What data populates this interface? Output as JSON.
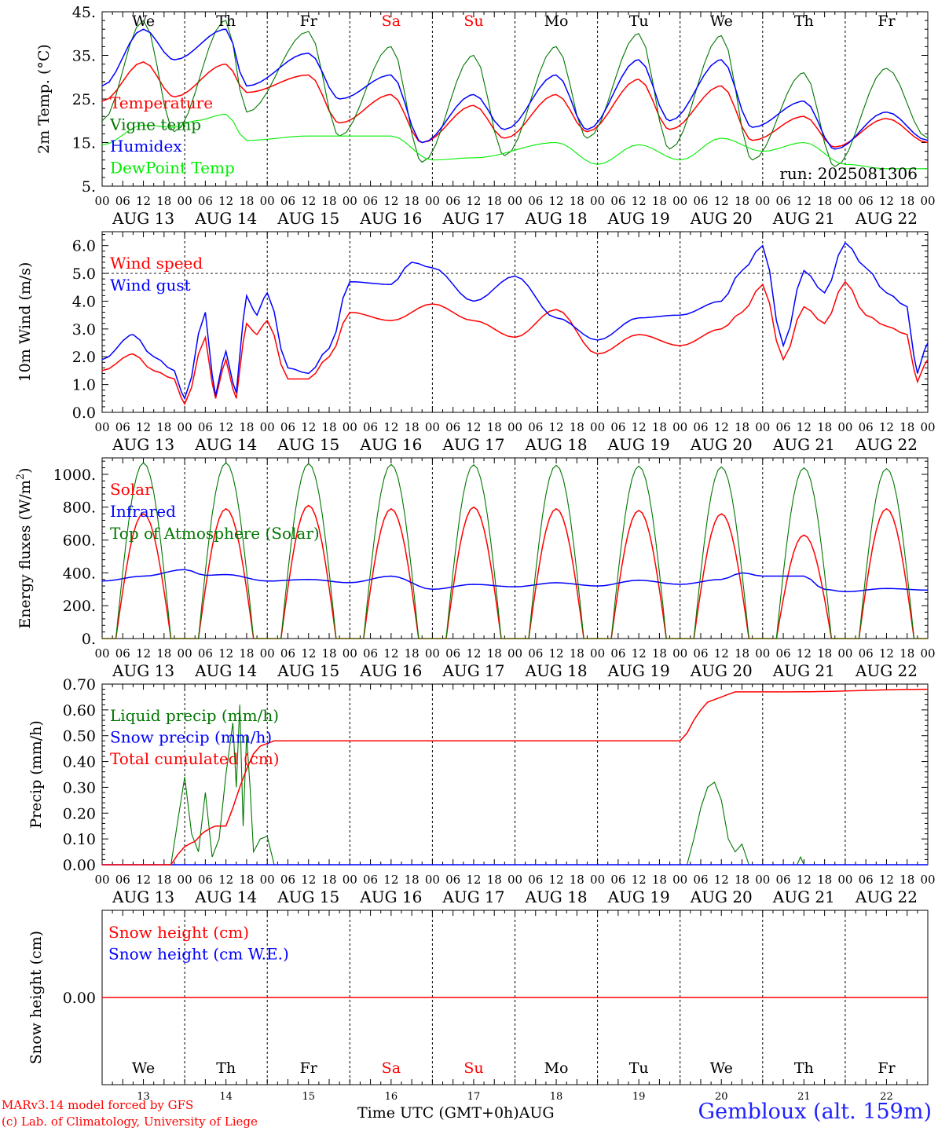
{
  "colors": {
    "red": "#ff0000",
    "green": "#007700",
    "blue": "#0000ff",
    "lime": "#00ee00",
    "weekday": "#000000",
    "weekend": "#ff0000"
  },
  "days": [
    {
      "dow": "We",
      "num": "13",
      "date": "AUG 13",
      "weekend": false
    },
    {
      "dow": "Th",
      "num": "14",
      "date": "AUG 14",
      "weekend": false
    },
    {
      "dow": "Fr",
      "num": "15",
      "date": "AUG 15",
      "weekend": false
    },
    {
      "dow": "Sa",
      "num": "16",
      "date": "AUG 16",
      "weekend": true
    },
    {
      "dow": "Su",
      "num": "17",
      "date": "AUG 17",
      "weekend": true
    },
    {
      "dow": "Mo",
      "num": "18",
      "date": "AUG 18",
      "weekend": false
    },
    {
      "dow": "Tu",
      "num": "19",
      "date": "AUG 19",
      "weekend": false
    },
    {
      "dow": "We",
      "num": "20",
      "date": "AUG 20",
      "weekend": false
    },
    {
      "dow": "Th",
      "num": "21",
      "date": "AUG 21",
      "weekend": false
    },
    {
      "dow": "Fr",
      "num": "22",
      "date": "AUG 22",
      "weekend": false
    }
  ],
  "hour_ticks": [
    "00",
    "06",
    "12",
    "18"
  ],
  "final_hour_tick": "00",
  "footer": {
    "credit_line1": "MARv3.14 model forced by GFS",
    "credit_line2": "(c) Lab. of Climatology, University of Liege",
    "xlabel": "Time UTC (GMT+0h)",
    "month": "AUG",
    "location": "Gembloux (alt. 159m)"
  },
  "chart_data": [
    {
      "type": "line",
      "ylabel": "2m Temp. (°C)",
      "ylim": [
        5,
        45
      ],
      "y_ticks": [
        {
          "v": 5,
          "label": "5."
        },
        {
          "v": 15,
          "label": "15."
        },
        {
          "v": 25,
          "label": "25."
        },
        {
          "v": 35,
          "label": "35."
        },
        {
          "v": 45,
          "label": "45."
        }
      ],
      "annotation": "run: 2025081306",
      "series": [
        {
          "name": "Temperature",
          "color": "#ff0000",
          "hours": [
            0,
            12,
            21,
            36,
            42,
            60,
            69,
            84,
            93,
            108,
            117,
            132,
            141,
            156,
            165,
            180,
            189,
            204,
            213,
            228,
            240
          ],
          "values": [
            24.5,
            33.5,
            25.5,
            33,
            26.5,
            30.5,
            19.5,
            26,
            15,
            23.5,
            16,
            26,
            17.5,
            29.5,
            18,
            28,
            15.5,
            21,
            14,
            20.5,
            15
          ]
        },
        {
          "name": "Vigne temp",
          "color": "#007700",
          "hours": [
            0,
            12,
            21,
            36,
            42,
            60,
            69,
            84,
            93,
            108,
            117,
            132,
            141,
            156,
            165,
            180,
            189,
            204,
            213,
            228,
            240
          ],
          "values": [
            20,
            43,
            17.5,
            43,
            22,
            40.5,
            16.5,
            37,
            10.5,
            35,
            12,
            37,
            16,
            40,
            13.5,
            39.5,
            11,
            31,
            9.5,
            32,
            16
          ]
        },
        {
          "name": "Humidex",
          "color": "#0000ff",
          "hours": [
            0,
            12,
            21,
            36,
            42,
            60,
            69,
            84,
            93,
            108,
            117,
            132,
            141,
            156,
            165,
            180,
            189,
            204,
            213,
            228,
            240
          ],
          "values": [
            28,
            41,
            34,
            41,
            28,
            35.5,
            25,
            30.5,
            15,
            26,
            18,
            30.5,
            18,
            34,
            20,
            34,
            18.5,
            24.5,
            13.5,
            22,
            15.5
          ]
        },
        {
          "name": "DewPoint Temp",
          "color": "#00ee00",
          "hours": [
            0,
            12,
            21,
            27,
            36,
            42,
            60,
            84,
            96,
            108,
            132,
            144,
            156,
            168,
            180,
            192,
            204,
            216,
            228,
            240
          ],
          "values": [
            14.5,
            19,
            18.5,
            20,
            21.5,
            15.5,
            16.5,
            16.5,
            11,
            11.5,
            15,
            10,
            14.5,
            11,
            16,
            13,
            15,
            10,
            9,
            9
          ]
        }
      ]
    },
    {
      "type": "line",
      "ylabel": "10m Wind (m/s)",
      "ylim": [
        0,
        6.5
      ],
      "y_ticks": [
        {
          "v": 0,
          "label": "0.0"
        },
        {
          "v": 1,
          "label": "1.0"
        },
        {
          "v": 2,
          "label": "2.0"
        },
        {
          "v": 3,
          "label": "3.0"
        },
        {
          "v": 4,
          "label": "4.0"
        },
        {
          "v": 5,
          "label": "5.0"
        },
        {
          "v": 6,
          "label": "6.0"
        }
      ],
      "reference_line": 5,
      "series": [
        {
          "name": "Wind speed",
          "color": "#ff0000",
          "hours": [
            0,
            9,
            15,
            21,
            24,
            30,
            33,
            36,
            39,
            42,
            45,
            48,
            54,
            60,
            66,
            72,
            84,
            96,
            108,
            120,
            132,
            144,
            156,
            168,
            180,
            186,
            192,
            198,
            204,
            210,
            216,
            222,
            228,
            234,
            237,
            240
          ],
          "values": [
            1.5,
            2.1,
            1.5,
            1.2,
            0.3,
            2.7,
            0.5,
            1.9,
            0.5,
            3.2,
            2.8,
            3.3,
            1.2,
            1.2,
            2.0,
            3.6,
            3.3,
            3.9,
            3.3,
            2.7,
            3.7,
            2.1,
            2.8,
            2.4,
            3.0,
            3.6,
            4.6,
            1.9,
            3.8,
            3.2,
            4.7,
            3.5,
            3.1,
            2.8,
            1.1,
            1.9
          ]
        },
        {
          "name": "Wind gust",
          "color": "#0000ff",
          "hours": [
            0,
            9,
            15,
            21,
            24,
            30,
            33,
            36,
            39,
            42,
            45,
            48,
            54,
            60,
            66,
            72,
            84,
            90,
            96,
            108,
            120,
            132,
            144,
            156,
            168,
            180,
            186,
            192,
            198,
            204,
            210,
            216,
            222,
            228,
            234,
            237,
            240
          ],
          "values": [
            1.9,
            2.8,
            2.0,
            1.5,
            0.5,
            3.6,
            0.6,
            2.2,
            0.7,
            4.2,
            3.5,
            4.3,
            1.6,
            1.4,
            2.3,
            4.7,
            4.6,
            5.4,
            5.2,
            4.0,
            4.9,
            3.4,
            2.6,
            3.4,
            3.5,
            4.0,
            5.1,
            6.0,
            2.4,
            5.1,
            4.3,
            6.1,
            5.2,
            4.3,
            3.8,
            1.4,
            2.5
          ]
        }
      ]
    },
    {
      "type": "line",
      "ylabel": "Energy fluxes (W/m2)",
      "ylim": [
        0,
        1100
      ],
      "y_ticks": [
        {
          "v": 0,
          "label": "0."
        },
        {
          "v": 200,
          "label": "200."
        },
        {
          "v": 400,
          "label": "400."
        },
        {
          "v": 600,
          "label": "600."
        },
        {
          "v": 800,
          "label": "800."
        },
        {
          "v": 1000,
          "label": "1000."
        }
      ],
      "diurnal": {
        "rise_hour": 4,
        "set_hour": 20,
        "peak_hour": 12
      },
      "series": [
        {
          "name": "Solar",
          "color": "#ff0000",
          "daily_peaks": [
            760,
            790,
            810,
            790,
            800,
            790,
            780,
            760,
            630,
            790
          ]
        },
        {
          "name": "Infrared",
          "color": "#0000ff",
          "hours": [
            0,
            12,
            24,
            30,
            36,
            48,
            60,
            72,
            84,
            96,
            108,
            120,
            132,
            144,
            156,
            168,
            180,
            186,
            192,
            204,
            210,
            216,
            228,
            240
          ],
          "values": [
            350,
            380,
            420,
            385,
            390,
            350,
            360,
            340,
            380,
            300,
            330,
            315,
            340,
            320,
            355,
            330,
            360,
            400,
            380,
            380,
            300,
            285,
            305,
            295
          ]
        },
        {
          "name": "Top of Atmosphere (Solar)",
          "color": "#007700",
          "daily_peaks": [
            1070,
            1070,
            1065,
            1060,
            1058,
            1055,
            1050,
            1045,
            1040,
            1035
          ]
        }
      ]
    },
    {
      "type": "line",
      "ylabel": "Precip (mm/h)",
      "ylim": [
        0,
        0.7
      ],
      "y_ticks": [
        {
          "v": 0,
          "label": "0.00"
        },
        {
          "v": 0.1,
          "label": "0.10"
        },
        {
          "v": 0.2,
          "label": "0.20"
        },
        {
          "v": 0.3,
          "label": "0.30"
        },
        {
          "v": 0.4,
          "label": "0.40"
        },
        {
          "v": 0.5,
          "label": "0.50"
        },
        {
          "v": 0.6,
          "label": "0.60"
        },
        {
          "v": 0.7,
          "label": "0.70"
        }
      ],
      "series": [
        {
          "name": "Liquid precip (mm/h)",
          "color": "#007700",
          "hours": [
            0,
            20,
            24,
            26,
            28,
            30,
            32,
            34,
            36,
            38,
            39,
            40,
            41,
            42,
            43,
            44,
            46,
            48,
            50,
            170,
            172,
            174,
            176,
            178,
            180,
            182,
            184,
            186,
            188,
            202,
            203,
            204,
            240
          ],
          "values": [
            0,
            0,
            0.34,
            0.12,
            0.05,
            0.28,
            0.03,
            0.1,
            0.35,
            0.55,
            0.3,
            0.62,
            0.15,
            0.5,
            0.3,
            0.05,
            0.1,
            0.11,
            0,
            0,
            0.1,
            0.22,
            0.3,
            0.32,
            0.25,
            0.1,
            0.05,
            0.08,
            0,
            0,
            0.03,
            0,
            0
          ]
        },
        {
          "name": "Snow precip (mm/h)",
          "color": "#0000ff",
          "hours": [
            0,
            240
          ],
          "values": [
            0,
            0
          ]
        },
        {
          "name": "Total cumulated (cm)",
          "color": "#ff0000",
          "hours": [
            0,
            20,
            22,
            24,
            27,
            30,
            33,
            36,
            38,
            40,
            42,
            44,
            46,
            48,
            50,
            168,
            170,
            172,
            174,
            176,
            178,
            180,
            184,
            200,
            240
          ],
          "values": [
            0,
            0,
            0.04,
            0.07,
            0.09,
            0.13,
            0.15,
            0.15,
            0.22,
            0.3,
            0.37,
            0.43,
            0.46,
            0.47,
            0.48,
            0.48,
            0.51,
            0.56,
            0.6,
            0.63,
            0.64,
            0.65,
            0.67,
            0.67,
            0.68
          ]
        }
      ]
    },
    {
      "type": "line",
      "ylabel": "Snow height (cm)",
      "y_ticks": [
        {
          "v": 0,
          "label": "0.00"
        }
      ],
      "series": [
        {
          "name": "Snow height (cm)",
          "color": "#ff0000",
          "hours": [
            0,
            240
          ],
          "values": [
            0,
            0
          ]
        },
        {
          "name": "Snow height (cm W.E.)",
          "color": "#0000ff",
          "hours": [
            0,
            240
          ],
          "values": [
            0,
            0
          ]
        }
      ]
    }
  ]
}
